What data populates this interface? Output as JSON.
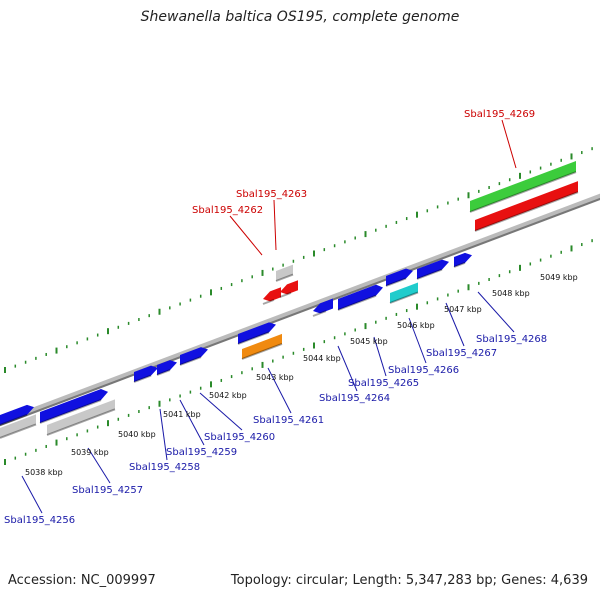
{
  "title": "Shewanella baltica OS195, complete genome",
  "footer": {
    "accession": "Accession: NC_009997",
    "topology": "Topology: circular; Length: 5,347,283 bp; Genes: 4,639"
  },
  "colors": {
    "ruler": "#2a8a2a",
    "backbone": "#888888",
    "cds_forward": "#1010e0",
    "cds_reverse_highlight": "#e81010",
    "rna": "#3ccc3c",
    "pseudogene": "#c8c8c8",
    "misc_cyan": "#20cccc",
    "misc_orange": "#f08a10",
    "label_top": "#cc0000",
    "label_bottom": "#1a1aa8"
  },
  "tick_labels": [
    "5038 kbp",
    "5039 kbp",
    "5040 kbp",
    "5041 kbp",
    "5042 kbp",
    "5043 kbp",
    "5044 kbp",
    "5045 kbp",
    "5046 kbp",
    "5047 kbp",
    "5048 kbp",
    "5049 kbp"
  ],
  "gene_labels_top": [
    "Sbal195_4262",
    "Sbal195_4263",
    "Sbal195_4269"
  ],
  "gene_labels_bottom": [
    "Sbal195_4256",
    "Sbal195_4257",
    "Sbal195_4258",
    "Sbal195_4259",
    "Sbal195_4260",
    "Sbal195_4261",
    "Sbal195_4264",
    "Sbal195_4265",
    "Sbal195_4266",
    "Sbal195_4267",
    "Sbal195_4268"
  ]
}
